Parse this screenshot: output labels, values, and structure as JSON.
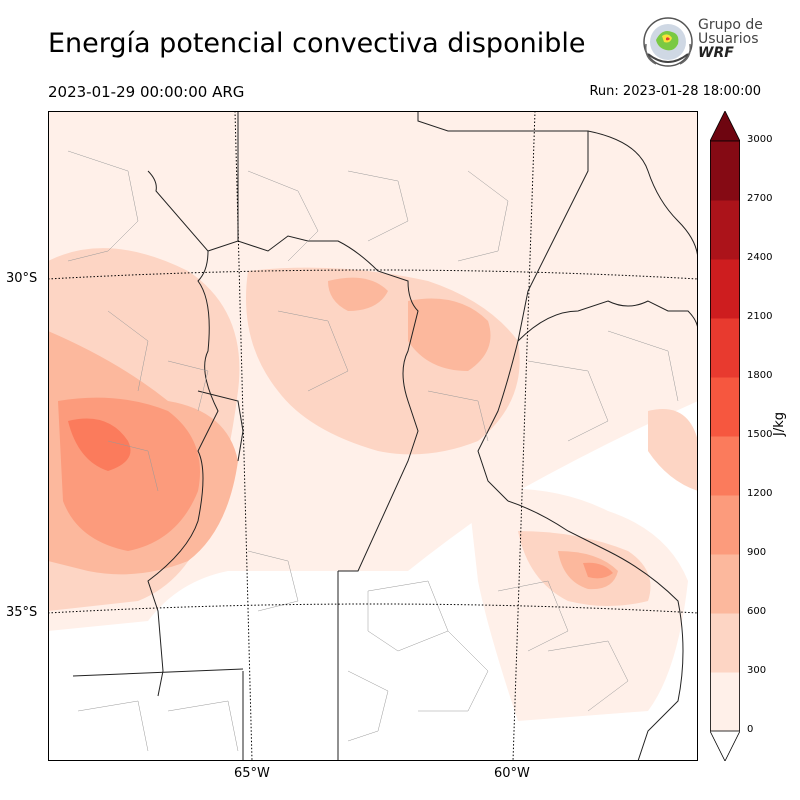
{
  "header": {
    "title": "Energía potencial convectiva disponible",
    "valid_time": "2023-01-29 00:00:00 ARG",
    "run_time": "Run: 2023-01-28 18:00:00"
  },
  "logo": {
    "line1": "Grupo de",
    "line2": "Usuarios",
    "line3": "WRF"
  },
  "map": {
    "lat_labels": [
      "30°S",
      "35°S"
    ],
    "lon_labels": [
      "65°W",
      "60°W"
    ]
  },
  "colorbar": {
    "label": "J/kg",
    "ticks": [
      "3000",
      "2700",
      "2400",
      "2100",
      "1800",
      "1500",
      "1200",
      "900",
      "600",
      "300",
      "0"
    ],
    "colors": [
      "#fff0e9",
      "#fdd5c4",
      "#fcb89d",
      "#fc9b7c",
      "#fb7b5c",
      "#f6573f",
      "#e83a2f",
      "#ce1d1f",
      "#ac131a",
      "#850a14"
    ],
    "over_color": "#6e0510"
  }
}
